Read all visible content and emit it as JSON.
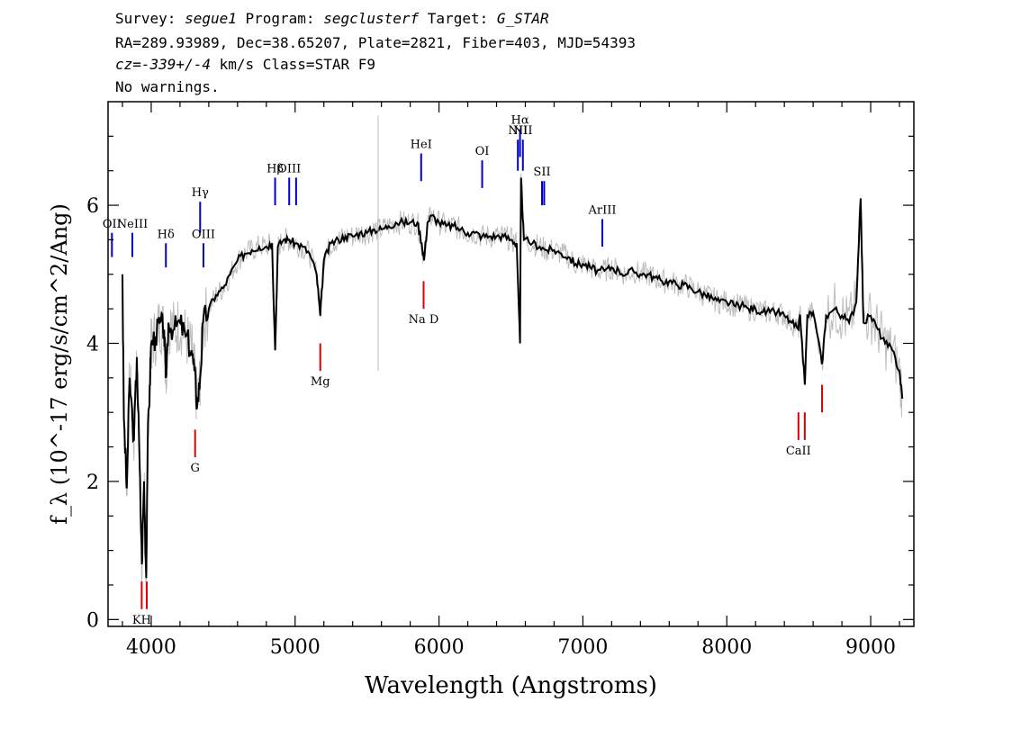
{
  "header": {
    "line1": {
      "survey_label": "Survey: ",
      "survey": "segue1",
      "program_label": " Program: ",
      "program": "segclusterf",
      "target_label": " Target: ",
      "target": "G_STAR"
    },
    "line2": "RA=289.93989, Dec=38.65207, Plate=2821, Fiber=403, MJD=54393",
    "line3": {
      "cz": "cz=-339+/-4",
      "rest": " km/s Class=STAR F9"
    },
    "line4": "No warnings."
  },
  "chart_data": {
    "type": "line",
    "xlabel": "Wavelength (Angstroms)",
    "ylabel": "f_λ (10^-17 erg/s/cm^2/Ang)",
    "xlim": [
      3700,
      9300
    ],
    "ylim": [
      -0.1,
      7.5
    ],
    "x_ticks": [
      4000,
      5000,
      6000,
      7000,
      8000,
      9000
    ],
    "y_ticks": [
      0,
      2,
      4,
      6
    ],
    "grid": false,
    "series": [
      {
        "color": "#000000",
        "points": [
          [
            3800,
            5.0
          ],
          [
            3810,
            2.9
          ],
          [
            3830,
            1.9
          ],
          [
            3850,
            3.5
          ],
          [
            3880,
            2.6
          ],
          [
            3900,
            3.8
          ],
          [
            3920,
            2.2
          ],
          [
            3935,
            0.8
          ],
          [
            3950,
            2.0
          ],
          [
            3965,
            0.6
          ],
          [
            3975,
            2.5
          ],
          [
            3990,
            3.4
          ],
          [
            4000,
            4.0
          ],
          [
            4030,
            4.1
          ],
          [
            4060,
            4.3
          ],
          [
            4090,
            4.2
          ],
          [
            4101,
            3.5
          ],
          [
            4120,
            4.3
          ],
          [
            4160,
            4.2
          ],
          [
            4200,
            4.3
          ],
          [
            4240,
            4.1
          ],
          [
            4280,
            3.9
          ],
          [
            4300,
            3.6
          ],
          [
            4320,
            3.1
          ],
          [
            4340,
            3.5
          ],
          [
            4360,
            4.3
          ],
          [
            4400,
            4.5
          ],
          [
            4450,
            4.7
          ],
          [
            4500,
            4.8
          ],
          [
            4550,
            5.0
          ],
          [
            4600,
            5.2
          ],
          [
            4650,
            5.3
          ],
          [
            4700,
            5.35
          ],
          [
            4750,
            5.4
          ],
          [
            4800,
            5.4
          ],
          [
            4840,
            5.45
          ],
          [
            4861,
            3.9
          ],
          [
            4880,
            5.4
          ],
          [
            4920,
            5.5
          ],
          [
            4960,
            5.5
          ],
          [
            5000,
            5.45
          ],
          [
            5050,
            5.4
          ],
          [
            5100,
            5.3
          ],
          [
            5150,
            5.0
          ],
          [
            5175,
            4.4
          ],
          [
            5200,
            5.2
          ],
          [
            5250,
            5.45
          ],
          [
            5300,
            5.5
          ],
          [
            5350,
            5.55
          ],
          [
            5400,
            5.55
          ],
          [
            5450,
            5.6
          ],
          [
            5500,
            5.6
          ],
          [
            5550,
            5.65
          ],
          [
            5600,
            5.65
          ],
          [
            5650,
            5.7
          ],
          [
            5700,
            5.75
          ],
          [
            5750,
            5.75
          ],
          [
            5800,
            5.75
          ],
          [
            5850,
            5.75
          ],
          [
            5880,
            5.45
          ],
          [
            5896,
            5.2
          ],
          [
            5920,
            5.75
          ],
          [
            5950,
            5.85
          ],
          [
            6000,
            5.75
          ],
          [
            6050,
            5.7
          ],
          [
            6100,
            5.7
          ],
          [
            6150,
            5.65
          ],
          [
            6200,
            5.6
          ],
          [
            6250,
            5.6
          ],
          [
            6300,
            5.55
          ],
          [
            6350,
            5.55
          ],
          [
            6400,
            5.55
          ],
          [
            6450,
            5.55
          ],
          [
            6500,
            5.5
          ],
          [
            6540,
            5.45
          ],
          [
            6563,
            4.0
          ],
          [
            6570,
            6.4
          ],
          [
            6590,
            5.5
          ],
          [
            6650,
            5.45
          ],
          [
            6700,
            5.4
          ],
          [
            6750,
            5.35
          ],
          [
            6800,
            5.35
          ],
          [
            6850,
            5.3
          ],
          [
            6900,
            5.25
          ],
          [
            6950,
            5.15
          ],
          [
            7000,
            5.15
          ],
          [
            7050,
            5.1
          ],
          [
            7100,
            5.05
          ],
          [
            7150,
            5.05
          ],
          [
            7200,
            5.1
          ],
          [
            7250,
            5.05
          ],
          [
            7300,
            5.0
          ],
          [
            7350,
            5.05
          ],
          [
            7400,
            5.0
          ],
          [
            7450,
            5.0
          ],
          [
            7500,
            4.95
          ],
          [
            7550,
            4.9
          ],
          [
            7600,
            4.9
          ],
          [
            7650,
            4.85
          ],
          [
            7700,
            4.85
          ],
          [
            7750,
            4.8
          ],
          [
            7800,
            4.75
          ],
          [
            7850,
            4.7
          ],
          [
            7900,
            4.65
          ],
          [
            7950,
            4.6
          ],
          [
            8000,
            4.6
          ],
          [
            8050,
            4.55
          ],
          [
            8100,
            4.55
          ],
          [
            8150,
            4.5
          ],
          [
            8200,
            4.5
          ],
          [
            8250,
            4.45
          ],
          [
            8300,
            4.45
          ],
          [
            8350,
            4.45
          ],
          [
            8400,
            4.4
          ],
          [
            8450,
            4.3
          ],
          [
            8498,
            4.2
          ],
          [
            8510,
            4.4
          ],
          [
            8542,
            3.4
          ],
          [
            8560,
            4.4
          ],
          [
            8600,
            4.45
          ],
          [
            8662,
            3.7
          ],
          [
            8690,
            4.4
          ],
          [
            8750,
            4.5
          ],
          [
            8800,
            4.4
          ],
          [
            8850,
            4.3
          ],
          [
            8900,
            4.6
          ],
          [
            8930,
            6.1
          ],
          [
            8950,
            4.3
          ],
          [
            9000,
            4.4
          ],
          [
            9050,
            4.2
          ],
          [
            9100,
            4.0
          ],
          [
            9150,
            3.9
          ],
          [
            9200,
            3.6
          ],
          [
            9220,
            3.2
          ]
        ]
      }
    ],
    "lines": {
      "emission_color": "#0000cc",
      "absorption_color": "#dd0000",
      "emission": [
        {
          "label": "OII",
          "x": 3727,
          "y0": 5.25,
          "y1": 5.6
        },
        {
          "label": "NeIII",
          "x": 3869,
          "y0": 5.25,
          "y1": 5.6
        },
        {
          "label": "Hδ",
          "x": 4102,
          "y0": 5.1,
          "y1": 5.45
        },
        {
          "label": "Hγ",
          "x": 4340,
          "y0": 5.6,
          "y1": 6.05
        },
        {
          "label": "OIII",
          "x": 4363,
          "y0": 5.1,
          "y1": 5.45
        },
        {
          "label": "Hβ",
          "x": 4861,
          "y0": 6.0,
          "y1": 6.4
        },
        {
          "label": "OIII",
          "x": 4959,
          "y0": 6.0,
          "y1": 6.4
        },
        {
          "label": "",
          "x": 5007,
          "y0": 6.0,
          "y1": 6.4
        },
        {
          "label": "HeI",
          "x": 5876,
          "y0": 6.35,
          "y1": 6.75
        },
        {
          "label": "OI",
          "x": 6300,
          "y0": 6.25,
          "y1": 6.65
        },
        {
          "label": "NII",
          "x": 6548,
          "y0": 6.5,
          "y1": 6.95
        },
        {
          "label": "Hα",
          "x": 6563,
          "y0": 6.7,
          "y1": 7.1
        },
        {
          "label": "NII",
          "x": 6583,
          "y0": 6.5,
          "y1": 6.95
        },
        {
          "label": "SII",
          "x": 6716,
          "y0": 6.0,
          "y1": 6.35
        },
        {
          "label": "",
          "x": 6731,
          "y0": 6.0,
          "y1": 6.35
        },
        {
          "label": "ArIII",
          "x": 7135,
          "y0": 5.4,
          "y1": 5.8
        }
      ],
      "absorption": [
        {
          "label": "KH",
          "x": 3934,
          "y0": 0.15,
          "y1": 0.55
        },
        {
          "label": "",
          "x": 3969,
          "y0": 0.15,
          "y1": 0.55
        },
        {
          "label": "G",
          "x": 4305,
          "y0": 2.35,
          "y1": 2.75
        },
        {
          "label": "Mg",
          "x": 5175,
          "y0": 3.6,
          "y1": 4.0
        },
        {
          "label": "Na D",
          "x": 5893,
          "y0": 4.5,
          "y1": 4.9
        },
        {
          "label": "CaII",
          "x": 8498,
          "y0": 2.6,
          "y1": 3.0
        },
        {
          "label": "",
          "x": 8542,
          "y0": 2.6,
          "y1": 3.0
        },
        {
          "label": "",
          "x": 8662,
          "y0": 3.0,
          "y1": 3.4
        }
      ]
    }
  }
}
